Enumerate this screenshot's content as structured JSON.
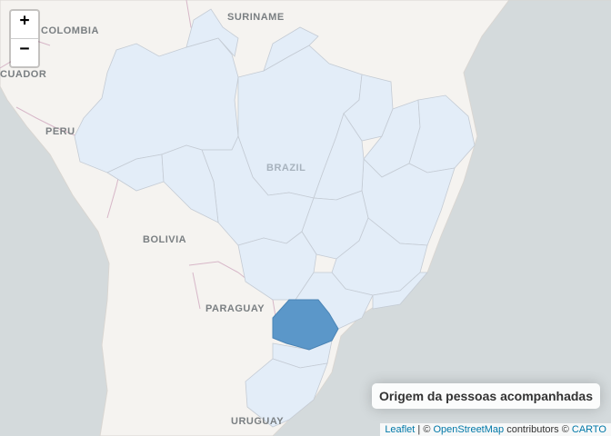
{
  "zoom": {
    "in_label": "+",
    "out_label": "−"
  },
  "labels": {
    "colombia": "COLOMBIA",
    "suriname": "SURINAME",
    "ecuador": "CUADOR",
    "peru": "PERU",
    "bolivia": "BOLIVIA",
    "brazil": "BRAZIL",
    "paraguay": "PARAGUAY",
    "uruguay": "URUGUAY"
  },
  "legend": {
    "title": "Origem da pessoas acompanhadas"
  },
  "attribution": {
    "leaflet": "Leaflet",
    "sep1": " | © ",
    "osm": "OpenStreetMap",
    "mid": " contributors © ",
    "carto": "CARTO"
  },
  "colors": {
    "ocean": "#d4dadc",
    "land": "#f5f3f0",
    "brazil_fill": "#e3edf8",
    "highlight_fill": "#5b97c9",
    "state_border": "#c4cbd4"
  },
  "highlighted_state": "Paraná"
}
